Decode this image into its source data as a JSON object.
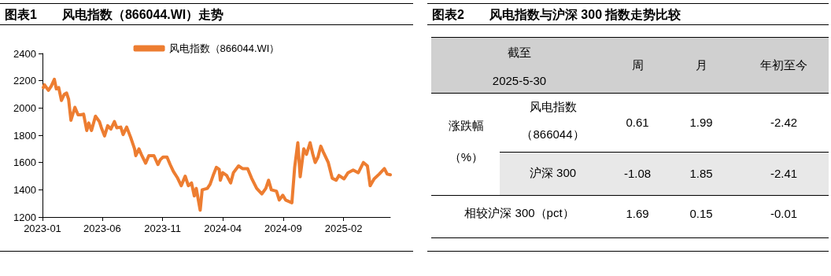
{
  "chart_data": [
    {
      "type": "line",
      "title": "图表1　　风电指数（866044.WI）走势",
      "x": [
        "2023-01-03",
        "2023-01-06",
        "2023-01-16",
        "2023-01-23",
        "2023-01-31",
        "2023-02-05",
        "2023-02-11",
        "2023-02-18",
        "2023-02-25",
        "2023-03-03",
        "2023-03-08",
        "2023-03-14",
        "2023-03-24",
        "2023-04-01",
        "2023-04-08",
        "2023-04-15",
        "2023-04-23",
        "2023-04-28",
        "2023-05-05",
        "2023-05-15",
        "2023-05-25",
        "2023-05-30",
        "2023-06-07",
        "2023-06-15",
        "2023-06-23",
        "2023-07-02",
        "2023-07-08",
        "2023-07-18",
        "2023-07-24",
        "2023-08-02",
        "2023-08-12",
        "2023-08-22",
        "2023-08-25",
        "2023-09-02",
        "2023-09-08",
        "2023-09-19",
        "2023-09-27",
        "2023-10-10",
        "2023-10-20",
        "2023-10-26",
        "2023-11-02",
        "2023-11-12",
        "2023-11-20",
        "2023-11-28",
        "2023-12-08",
        "2023-12-18",
        "2023-12-28",
        "2024-01-05",
        "2024-01-13",
        "2024-01-20",
        "2024-01-25",
        "2024-02-04",
        "2024-02-09",
        "2024-02-22",
        "2024-02-29",
        "2024-03-09",
        "2024-03-16",
        "2024-03-23",
        "2024-03-26",
        "2024-04-01",
        "2024-04-11",
        "2024-04-21",
        "2024-04-28",
        "2024-05-11",
        "2024-05-21",
        "2024-06-03",
        "2024-06-13",
        "2024-06-26",
        "2024-07-09",
        "2024-07-19",
        "2024-07-26",
        "2024-08-02",
        "2024-08-15",
        "2024-08-22",
        "2024-08-31",
        "2024-09-07",
        "2024-09-23",
        "2024-09-30",
        "2024-10-08",
        "2024-10-14",
        "2024-10-23",
        "2024-10-30",
        "2024-11-08",
        "2024-11-15",
        "2024-11-21",
        "2024-11-28",
        "2024-12-05",
        "2024-12-11",
        "2024-12-24",
        "2025-01-03",
        "2025-01-13",
        "2025-01-20",
        "2025-02-02",
        "2025-02-12",
        "2025-02-25",
        "2025-03-10",
        "2025-03-23",
        "2025-04-02",
        "2025-04-09",
        "2025-04-19",
        "2025-05-02",
        "2025-05-15",
        "2025-05-22",
        "2025-05-30"
      ],
      "series": [
        {
          "name": "风电指数（866044.WI）",
          "color": "#ed7d31",
          "values": [
            2150,
            2170,
            2130,
            2160,
            2210,
            2140,
            2150,
            2055,
            2100,
            2110,
            2065,
            1910,
            2005,
            1950,
            1950,
            1955,
            1835,
            1890,
            1835,
            1940,
            1900,
            1855,
            1795,
            1870,
            1845,
            1900,
            1855,
            1860,
            1805,
            1860,
            1785,
            1700,
            1650,
            1700,
            1660,
            1595,
            1650,
            1650,
            1585,
            1620,
            1640,
            1640,
            1585,
            1535,
            1490,
            1430,
            1500,
            1430,
            1450,
            1355,
            1410,
            1250,
            1400,
            1410,
            1440,
            1515,
            1565,
            1550,
            1470,
            1525,
            1505,
            1450,
            1525,
            1575,
            1555,
            1555,
            1485,
            1410,
            1370,
            1410,
            1470,
            1400,
            1390,
            1325,
            1360,
            1325,
            1305,
            1565,
            1745,
            1495,
            1700,
            1660,
            1745,
            1660,
            1600,
            1640,
            1720,
            1680,
            1600,
            1485,
            1470,
            1505,
            1480,
            1525,
            1545,
            1525,
            1600,
            1575,
            1430,
            1480,
            1515,
            1555,
            1515,
            1510
          ]
        }
      ],
      "xlim": [
        "2023-01-01",
        "2025-05-30"
      ],
      "xticks": [
        "2023-01",
        "2023-06",
        "2023-11",
        "2024-04",
        "2024-09",
        "2025-02"
      ],
      "ylim": [
        1200,
        2400
      ],
      "yticks": [
        1200,
        1400,
        1600,
        1800,
        2000,
        2200,
        2400
      ],
      "grid": false,
      "legend": "top",
      "marker": "none",
      "line_style": "solid"
    },
    {
      "type": "other",
      "title": "图表2　　风电指数与沪深 300 指数走势比较",
      "annotations": [
        "截至",
        "2025-5-30",
        "周",
        "月",
        "年初至今",
        "涨跌幅",
        "（%）",
        "风电指数",
        "（866044）",
        "0.61",
        "1.99",
        "-2.42",
        "沪深 300",
        "-1.08",
        "1.85",
        "-2.41",
        "相较沪深 300（pct）",
        "1.69",
        "0.15",
        "-0.01"
      ]
    }
  ]
}
